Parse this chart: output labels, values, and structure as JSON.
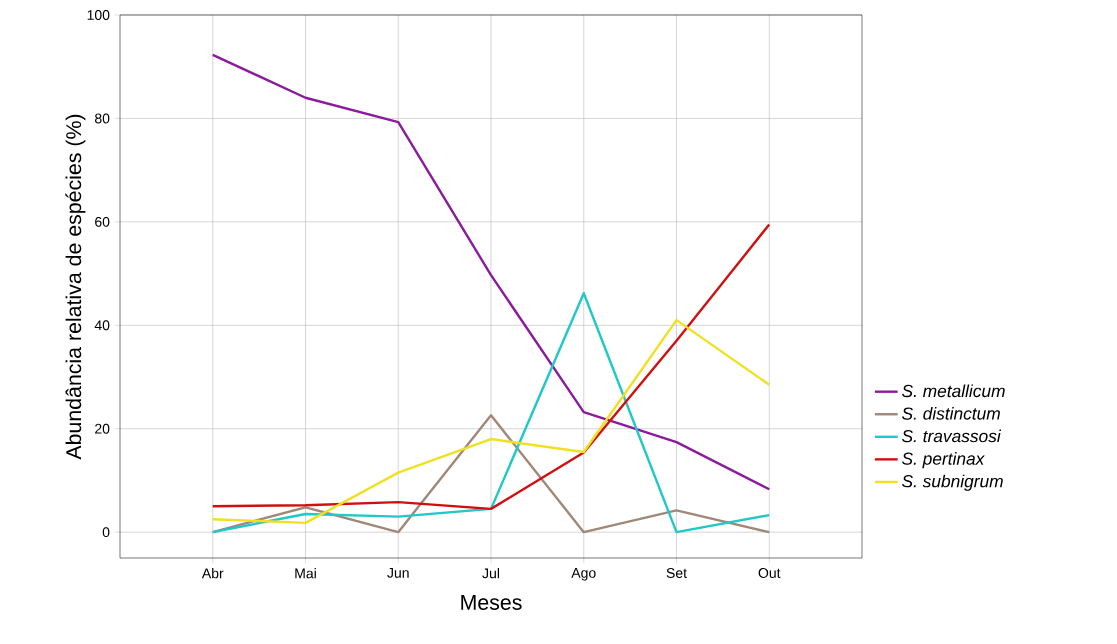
{
  "chart_data": {
    "type": "line",
    "xlabel": "Meses",
    "ylabel": "Abundância relativa de espécies (%)",
    "categories": [
      "Abr",
      "Mai",
      "Jun",
      "Jul",
      "Ago",
      "Set",
      "Out"
    ],
    "series": [
      {
        "name": "S. metallicum",
        "color": "#8b1a9c",
        "values": [
          92.3,
          84,
          79.3,
          49.7,
          23.2,
          17.4,
          8.3
        ]
      },
      {
        "name": "S. distinctum",
        "color": "#a08878",
        "values": [
          0,
          4.8,
          0,
          22.6,
          0,
          4.2,
          0
        ]
      },
      {
        "name": "S. travassosi",
        "color": "#20c8c8",
        "values": [
          0,
          3.5,
          3,
          4.5,
          46.2,
          0,
          3.3
        ]
      },
      {
        "name": "S. pertinax",
        "color": "#d01010",
        "values": [
          5,
          5.2,
          5.8,
          4.5,
          15.4,
          37,
          59.5
        ]
      },
      {
        "name": "S. subnigrum",
        "color": "#f0e020",
        "values": [
          2.5,
          1.8,
          11.5,
          18,
          15.5,
          41,
          28.5
        ]
      }
    ],
    "ylim": [
      -5,
      100
    ],
    "yticks": [
      0,
      20,
      40,
      60,
      80,
      100
    ],
    "grid": true,
    "legend": "right",
    "marker": "none",
    "line_style": "solid"
  }
}
